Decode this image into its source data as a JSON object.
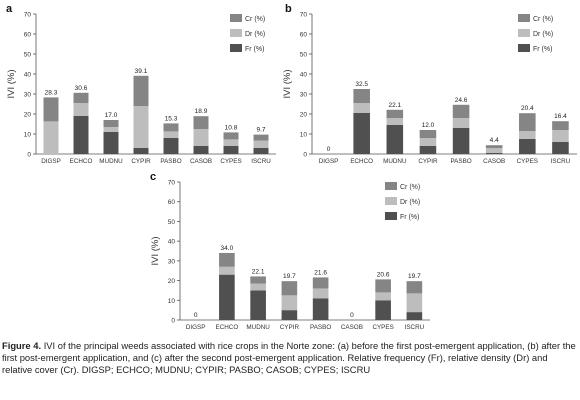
{
  "colors": {
    "cr": "#858585",
    "dr": "#bdbdbd",
    "fr": "#505050",
    "axis": "#555555"
  },
  "chart_data": [
    {
      "panel": "a",
      "type": "bar",
      "stacked": true,
      "ylabel": "IVI (%)",
      "ylim": [
        0,
        70
      ],
      "yticks": [
        0,
        10,
        20,
        30,
        40,
        50,
        60,
        70
      ],
      "categories": [
        "DIGSP",
        "ECHCO",
        "MUDNU",
        "CYPIR",
        "PASBO",
        "CASOB",
        "CYPES",
        "ISCRU"
      ],
      "totals": [
        "28.3",
        "30.6",
        "17.0",
        "39.1",
        "15.3",
        "18.9",
        "10.8",
        "9.7"
      ],
      "series": [
        {
          "name": "Fr (%)",
          "key": "fr",
          "values": [
            0,
            19,
            11,
            3,
            8,
            4,
            4,
            3
          ]
        },
        {
          "name": "Dr (%)",
          "key": "dr",
          "values": [
            16.3,
            6.5,
            2.5,
            21,
            3.3,
            8.5,
            3.3,
            3.7
          ]
        },
        {
          "name": "Cr (%)",
          "key": "cr",
          "values": [
            12,
            5.1,
            3.5,
            15.1,
            4,
            6.4,
            3.5,
            3
          ]
        }
      ],
      "legend": [
        "Cr (%)",
        "Dr (%)",
        "Fr (%)"
      ]
    },
    {
      "panel": "b",
      "type": "bar",
      "stacked": true,
      "ylabel": "IVI (%)",
      "ylim": [
        0,
        70
      ],
      "yticks": [
        0,
        10,
        20,
        30,
        40,
        50,
        60,
        70
      ],
      "categories": [
        "DIGSP",
        "ECHCO",
        "MUDNU",
        "CYPIR",
        "PASBO",
        "CASOB",
        "CYPES",
        "ISCRU"
      ],
      "totals": [
        "0",
        "32.5",
        "22.1",
        "12.0",
        "24.6",
        "4.4",
        "20.4",
        "16.4"
      ],
      "series": [
        {
          "name": "Fr (%)",
          "key": "fr",
          "values": [
            0,
            20.5,
            14.5,
            4,
            13,
            0.5,
            7.5,
            6
          ]
        },
        {
          "name": "Dr (%)",
          "key": "dr",
          "values": [
            0,
            5,
            3.5,
            4,
            5,
            2.4,
            4,
            6
          ]
        },
        {
          "name": "Cr (%)",
          "key": "cr",
          "values": [
            0,
            7,
            4.1,
            4,
            6.6,
            1.5,
            8.9,
            4.4
          ]
        }
      ],
      "legend": [
        "Cr (%)",
        "Dr (%)",
        "Fr (%)"
      ]
    },
    {
      "panel": "c",
      "type": "bar",
      "stacked": true,
      "ylabel": "IVI (%)",
      "ylim": [
        0,
        70
      ],
      "yticks": [
        0,
        10,
        20,
        30,
        40,
        50,
        60,
        70
      ],
      "categories": [
        "DIGSP",
        "ECHCO",
        "MUDNU",
        "CYPIR",
        "PASBO",
        "CASOB",
        "CYPES",
        "ISCRU"
      ],
      "totals": [
        "0",
        "34.0",
        "22.1",
        "19.7",
        "21.6",
        "0",
        "20.6",
        "19.7"
      ],
      "series": [
        {
          "name": "Fr (%)",
          "key": "fr",
          "values": [
            0,
            23,
            15,
            5,
            11,
            0,
            10,
            4
          ]
        },
        {
          "name": "Dr (%)",
          "key": "dr",
          "values": [
            0,
            4,
            3.5,
            7.5,
            5,
            0,
            4,
            9.5
          ]
        },
        {
          "name": "Cr (%)",
          "key": "cr",
          "values": [
            0,
            7,
            3.6,
            7.2,
            5.6,
            0,
            6.6,
            6.2
          ]
        }
      ],
      "legend": [
        "Cr (%)",
        "Dr (%)",
        "Fr (%)"
      ]
    }
  ],
  "caption": {
    "label": "Figure 4.",
    "text": "IVI of the principal weeds associated with rice crops in the Norte zone: (a) before the first post-emergent application, (b) after the first post-emergent application, and (c) after the second post-emergent application. Relative frequency (Fr), relative density (Dr) and relative cover (Cr). DIGSP; ECHCO; MUDNU; CYPIR; PASBO; CASOB; CYPES; ISCRU"
  }
}
